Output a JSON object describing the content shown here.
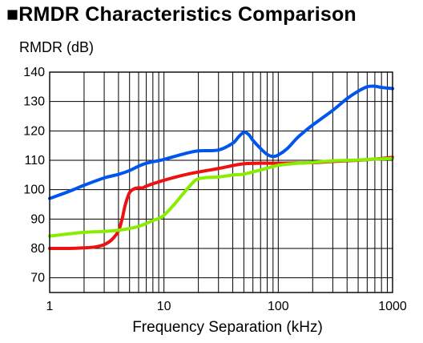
{
  "chart_data": {
    "type": "line",
    "title": "■RMDR Characteristics Comparison",
    "ylabel": "RMDR (dB)",
    "xlabel": "Frequency Separation (kHz)",
    "x_scale": "log",
    "xlim": [
      1,
      1000
    ],
    "ylim": [
      65,
      140
    ],
    "x_ticks": [
      1,
      10,
      100,
      1000
    ],
    "x_tick_labels": [
      "1",
      "10",
      "100",
      "1000"
    ],
    "y_ticks": [
      70,
      80,
      90,
      100,
      110,
      120,
      130,
      140
    ],
    "y_tick_labels": [
      "70",
      "80",
      "90",
      "100",
      "110",
      "120",
      "130",
      "140"
    ],
    "grid": true,
    "series": [
      {
        "color": "#0055ee",
        "points": [
          [
            1,
            97
          ],
          [
            1.5,
            99.5
          ],
          [
            2,
            101.5
          ],
          [
            3,
            104
          ],
          [
            4,
            105.2
          ],
          [
            5,
            106.5
          ],
          [
            6,
            108
          ],
          [
            7,
            109
          ],
          [
            8,
            109.5
          ],
          [
            10,
            110.3
          ],
          [
            15,
            112.2
          ],
          [
            20,
            113.2
          ],
          [
            30,
            113.5
          ],
          [
            40,
            115.8
          ],
          [
            45,
            118
          ],
          [
            50,
            119.5
          ],
          [
            55,
            118.8
          ],
          [
            60,
            116.8
          ],
          [
            70,
            114
          ],
          [
            80,
            112
          ],
          [
            90,
            111.3
          ],
          [
            100,
            111.8
          ],
          [
            120,
            114
          ],
          [
            150,
            118
          ],
          [
            200,
            122
          ],
          [
            300,
            127
          ],
          [
            400,
            131
          ],
          [
            500,
            133.5
          ],
          [
            600,
            135
          ],
          [
            700,
            135.2
          ],
          [
            800,
            134.8
          ],
          [
            1000,
            134.4
          ]
        ]
      },
      {
        "color": "#ee1111",
        "points": [
          [
            1,
            80
          ],
          [
            1.5,
            80
          ],
          [
            2,
            80.2
          ],
          [
            2.5,
            80.5
          ],
          [
            3,
            81.3
          ],
          [
            3.5,
            83
          ],
          [
            4,
            86
          ],
          [
            4.3,
            90
          ],
          [
            4.6,
            95
          ],
          [
            5,
            99
          ],
          [
            5.5,
            100.3
          ],
          [
            6,
            100.6
          ],
          [
            6.5,
            100.6
          ],
          [
            7,
            101.2
          ],
          [
            8,
            102
          ],
          [
            10,
            103.2
          ],
          [
            15,
            105
          ],
          [
            20,
            106
          ],
          [
            30,
            107.2
          ],
          [
            40,
            108.2
          ],
          [
            50,
            108.8
          ],
          [
            70,
            109
          ],
          [
            100,
            109
          ],
          [
            200,
            109.2
          ],
          [
            300,
            109.6
          ],
          [
            500,
            110
          ],
          [
            700,
            110.4
          ],
          [
            1000,
            111
          ]
        ]
      },
      {
        "color": "#88ee00",
        "points": [
          [
            1,
            84.2
          ],
          [
            1.5,
            85
          ],
          [
            2,
            85.5
          ],
          [
            3,
            85.8
          ],
          [
            4,
            86.2
          ],
          [
            5,
            86.8
          ],
          [
            6,
            87.5
          ],
          [
            7,
            88.5
          ],
          [
            8,
            89.5
          ],
          [
            9,
            90.2
          ],
          [
            10,
            91.3
          ],
          [
            12,
            94.5
          ],
          [
            15,
            99
          ],
          [
            18,
            102.5
          ],
          [
            20,
            103.7
          ],
          [
            25,
            104.2
          ],
          [
            30,
            104.3
          ],
          [
            40,
            105
          ],
          [
            50,
            105.3
          ],
          [
            70,
            106.7
          ],
          [
            100,
            108.3
          ],
          [
            150,
            109
          ],
          [
            200,
            109.3
          ],
          [
            300,
            109.8
          ],
          [
            500,
            110.1
          ],
          [
            700,
            110.4
          ],
          [
            1000,
            110.6
          ]
        ]
      }
    ]
  }
}
